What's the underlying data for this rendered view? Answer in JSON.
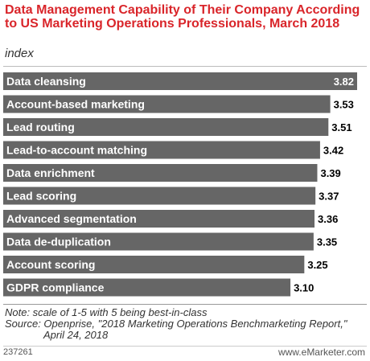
{
  "title": "Data Management Capability of Their Company According to US Marketing Operations Professionals, March 2018",
  "subtitle": "index",
  "note": "Note: scale of 1-5 with 5 being best-in-class",
  "source_line1": "Source: Openprise, \"2018 Marketing Operations Benchmarketing Report,\"",
  "source_line2": "April 24, 2018",
  "chart_id": "237261",
  "brand": "www.eMarketer.com",
  "colors": {
    "bar": "#666666",
    "title": "#d9252a",
    "label": "#ffffff",
    "value": "#000000"
  },
  "chart_data": {
    "type": "bar",
    "orientation": "horizontal",
    "categories": [
      "Data cleansing",
      "Account-based marketing",
      "Lead routing",
      "Lead-to-account matching",
      "Data enrichment",
      "Lead scoring",
      "Advanced segmentation",
      "Data de-duplication",
      "Account scoring",
      "GDPR compliance"
    ],
    "values": [
      3.82,
      3.53,
      3.51,
      3.42,
      3.39,
      3.37,
      3.36,
      3.35,
      3.25,
      3.1
    ],
    "value_labels": [
      "3.82",
      "3.53",
      "3.51",
      "3.42",
      "3.39",
      "3.37",
      "3.36",
      "3.35",
      "3.25",
      "3.10"
    ],
    "title": "Data Management Capability of Their Company According to US Marketing Operations Professionals, March 2018",
    "xlabel": "",
    "ylabel": "",
    "xlim": [
      0,
      3.82
    ],
    "grid": false,
    "legend": "none"
  }
}
